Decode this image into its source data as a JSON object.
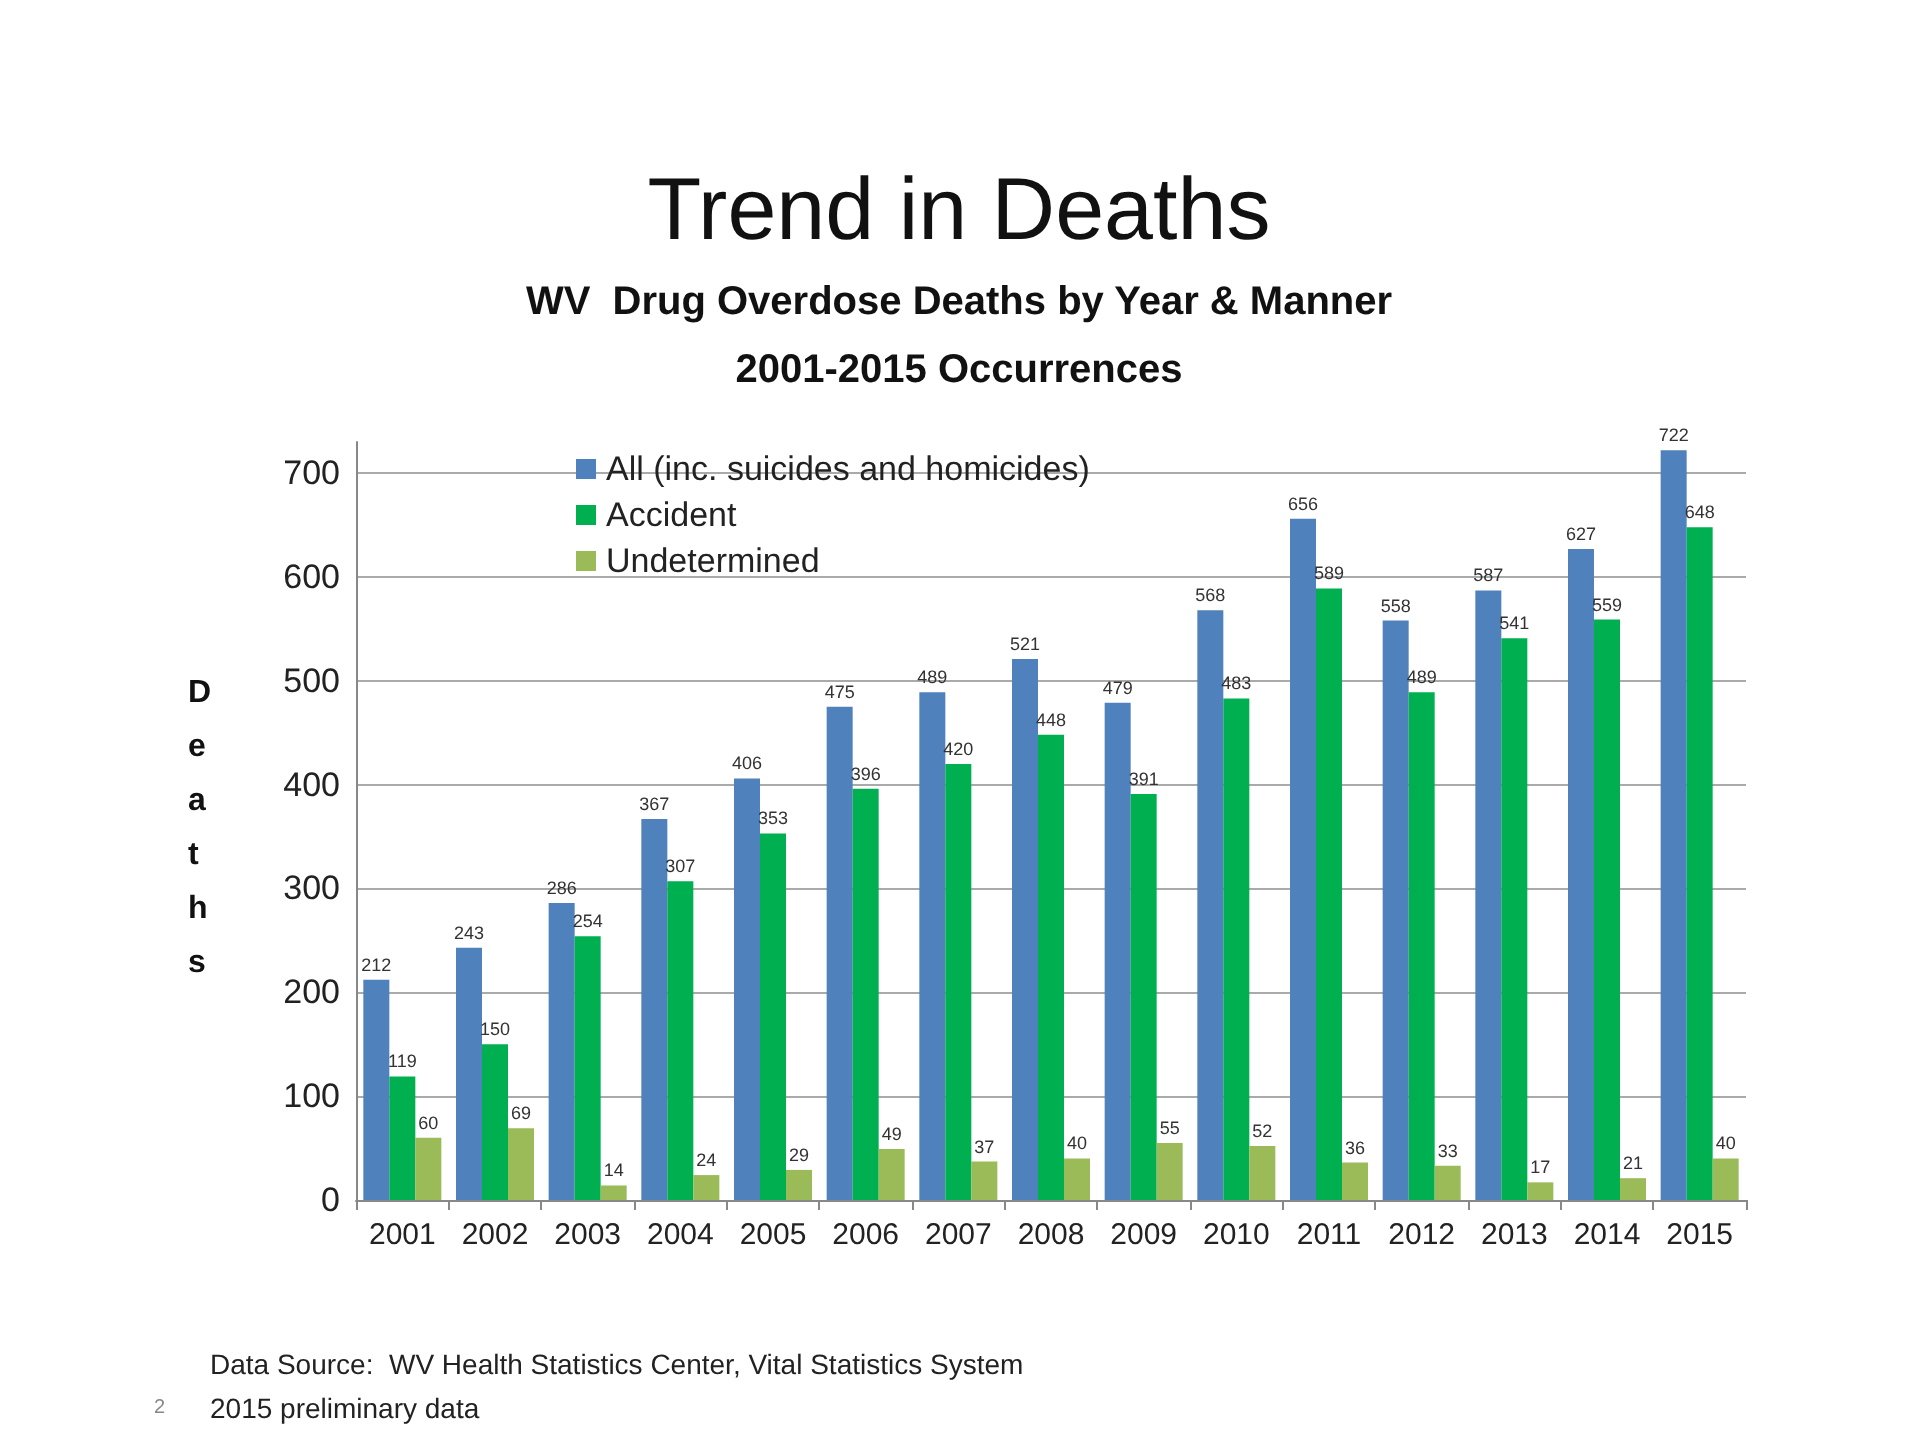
{
  "chart_data": {
    "type": "bar",
    "title": "Trend in Deaths",
    "subtitle": "WV  Drug Overdose Deaths by Year & Manner\n2001-2015 Occurrences",
    "ylabel": "Deaths",
    "categories": [
      "2001",
      "2002",
      "2003",
      "2004",
      "2005",
      "2006",
      "2007",
      "2008",
      "2009",
      "2010",
      "2011",
      "2012",
      "2013",
      "2014",
      "2015"
    ],
    "series": [
      {
        "name": "All (inc. suicides and homicides)",
        "color": "#4f81bd",
        "values": [
          212,
          243,
          286,
          367,
          406,
          475,
          489,
          521,
          479,
          568,
          656,
          558,
          587,
          627,
          722
        ]
      },
      {
        "name": "Accident",
        "color": "#00b050",
        "values": [
          119,
          150,
          254,
          307,
          353,
          396,
          420,
          448,
          391,
          483,
          589,
          489,
          541,
          559,
          648
        ]
      },
      {
        "name": "Undetermined",
        "color": "#9bbb59",
        "values": [
          60,
          69,
          14,
          24,
          29,
          49,
          37,
          40,
          55,
          52,
          36,
          33,
          17,
          21,
          40
        ]
      }
    ],
    "ylim": [
      0,
      730
    ],
    "yticks": [
      0,
      100,
      200,
      300,
      400,
      500,
      600,
      700
    ],
    "grid": "y",
    "legend": "top left",
    "data_labels": true,
    "annotations": [
      "Data Source:  WV Health Statistics Center, Vital Statistics System",
      "2",
      "2015 preliminary data"
    ]
  }
}
